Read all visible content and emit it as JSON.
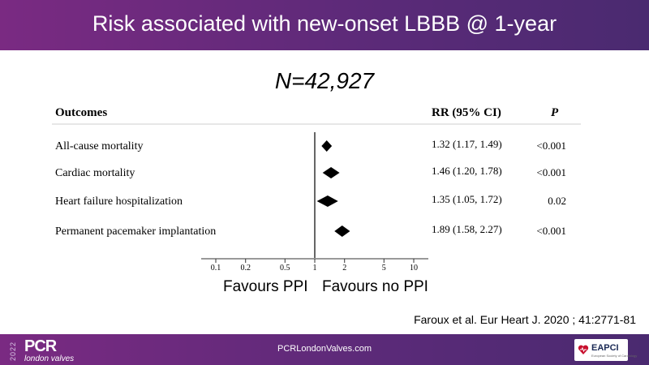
{
  "slide": {
    "title": "Risk associated with new-onset LBBB @ 1-year",
    "n_label": "N=42,927",
    "favours_left": "Favours PPI",
    "favours_right": "Favours no PPI",
    "citation": "Faroux et al. Eur Heart J. 2020 ; 41:2771-81"
  },
  "footer": {
    "year": "2022",
    "logo_main": "PCR",
    "logo_sub": "london valves",
    "url": "PCRLondonValves.com",
    "partner_logo": "EAPCI",
    "partner_sub": "European Society of Cardiology"
  },
  "colors": {
    "header_purple": "#6b2a7e",
    "footer_purple": "#5a2a78",
    "marker": "#000000"
  },
  "chart_data": {
    "type": "forest",
    "columns": {
      "outcome": "Outcomes",
      "estimate": "RR (95% CI)",
      "p": "P"
    },
    "rows": [
      {
        "outcome": "All-cause mortality",
        "rr": 1.32,
        "ci_low": 1.17,
        "ci_high": 1.49,
        "rr_text": "1.32 (1.17, 1.49)",
        "p_text": "<0.001"
      },
      {
        "outcome": "Cardiac mortality",
        "rr": 1.46,
        "ci_low": 1.2,
        "ci_high": 1.78,
        "rr_text": "1.46 (1.20, 1.78)",
        "p_text": "<0.001"
      },
      {
        "outcome": "Heart failure hospitalization",
        "rr": 1.35,
        "ci_low": 1.05,
        "ci_high": 1.72,
        "rr_text": "1.35 (1.05, 1.72)",
        "p_text": "0.02"
      },
      {
        "outcome": "Permanent pacemaker implantation",
        "rr": 1.89,
        "ci_low": 1.58,
        "ci_high": 2.27,
        "rr_text": "1.89 (1.58, 2.27)",
        "p_text": "<0.001"
      }
    ],
    "x_scale": "log",
    "x_ticks": [
      0.1,
      0.2,
      0.5,
      1,
      2,
      5,
      10
    ],
    "x_tick_labels": [
      "0.1",
      "0.2",
      "0.5",
      "1",
      "2",
      "5",
      "10"
    ],
    "xlim": [
      0.07,
      14
    ],
    "reference_line": 1
  }
}
